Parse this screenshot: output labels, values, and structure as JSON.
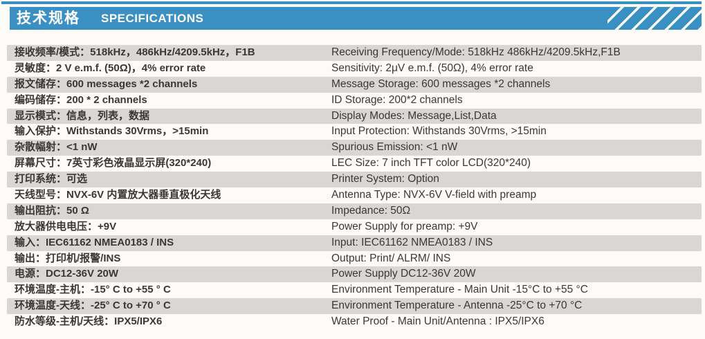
{
  "header": {
    "title_zh": "技术规格",
    "title_en": "SPECIFICATIONS"
  },
  "colors": {
    "accent_blue": "#3a90c2",
    "stripe_gray": "#d8d7d4",
    "text": "#3a3836",
    "page_bg": "#fcfbf8"
  },
  "specs": {
    "rows": [
      {
        "zh": "接收频率/模式：518kHz，486kHz/4209.5kHz，F1B",
        "en": "Receiving Frequency/Mode: 518kHz 486kHz/4209.5kHz,F1B"
      },
      {
        "zh": "灵敏度：2 V e.m.f. (50Ω)，4% error rate",
        "en": "Sensitivity: 2μV e.m.f. (50Ω), 4% error rate"
      },
      {
        "zh": "报文储存：600 messages *2 channels",
        "en": "Message Storage: 600 messages *2 channels"
      },
      {
        "zh": "编码储存：200 * 2 channels",
        "en": "ID Storage: 200*2 channels"
      },
      {
        "zh": "显示模式：信息，列表，数据",
        "en": "Display Modes: Message,List,Data"
      },
      {
        "zh": "输入保护：Withstands 30Vrms，>15min",
        "en": "Input Protection: Withstands 30Vrms, >15min"
      },
      {
        "zh": "杂散幅射：<1 nW",
        "en": "Spurious Emission: <1 nW"
      },
      {
        "zh": "屏幕尺寸：7英寸彩色液晶显示屏(320*240)",
        "en": "LEC Size: 7 inch TFT color LCD(320*240)"
      },
      {
        "zh": "打印系统：可选",
        "en": "Printer System: Option"
      },
      {
        "zh": "天线型号：NVX-6V 内置放大器垂直极化天线",
        "en": "Antenna Type: NVX-6V V-field with preamp"
      },
      {
        "zh": "输出阻抗：50 Ω",
        "en": "Impedance: 50Ω"
      },
      {
        "zh": "放大器供电电压：+9V",
        "en": "Power Supply for preamp: +9V"
      },
      {
        "zh": "输入：IEC61162 NMEA0183 / INS",
        "en": "Input: IEC61162 NMEA0183 / INS"
      },
      {
        "zh": "输出：打印机/报警/INS",
        "en": "Output: Print/ ALRM/ INS"
      },
      {
        "zh": "电源：DC12-36V 20W",
        "en": "Power Supply DC12-36V 20W"
      },
      {
        "zh": "环境温度-主机：-15° C to +55 ° C",
        "en": "Environment Temperature - Main Unit -15°C to +55 °C"
      },
      {
        "zh": "环境温度-天线：-25° C to +70 ° C",
        "en": "Environment Temperature - Antenna -25°C to +70 °C"
      },
      {
        "zh": "防水等级-主机/天线：IPX5/IPX6",
        "en": "Water Proof - Main Unit/Antenna : IPX5/IPX6"
      }
    ]
  }
}
